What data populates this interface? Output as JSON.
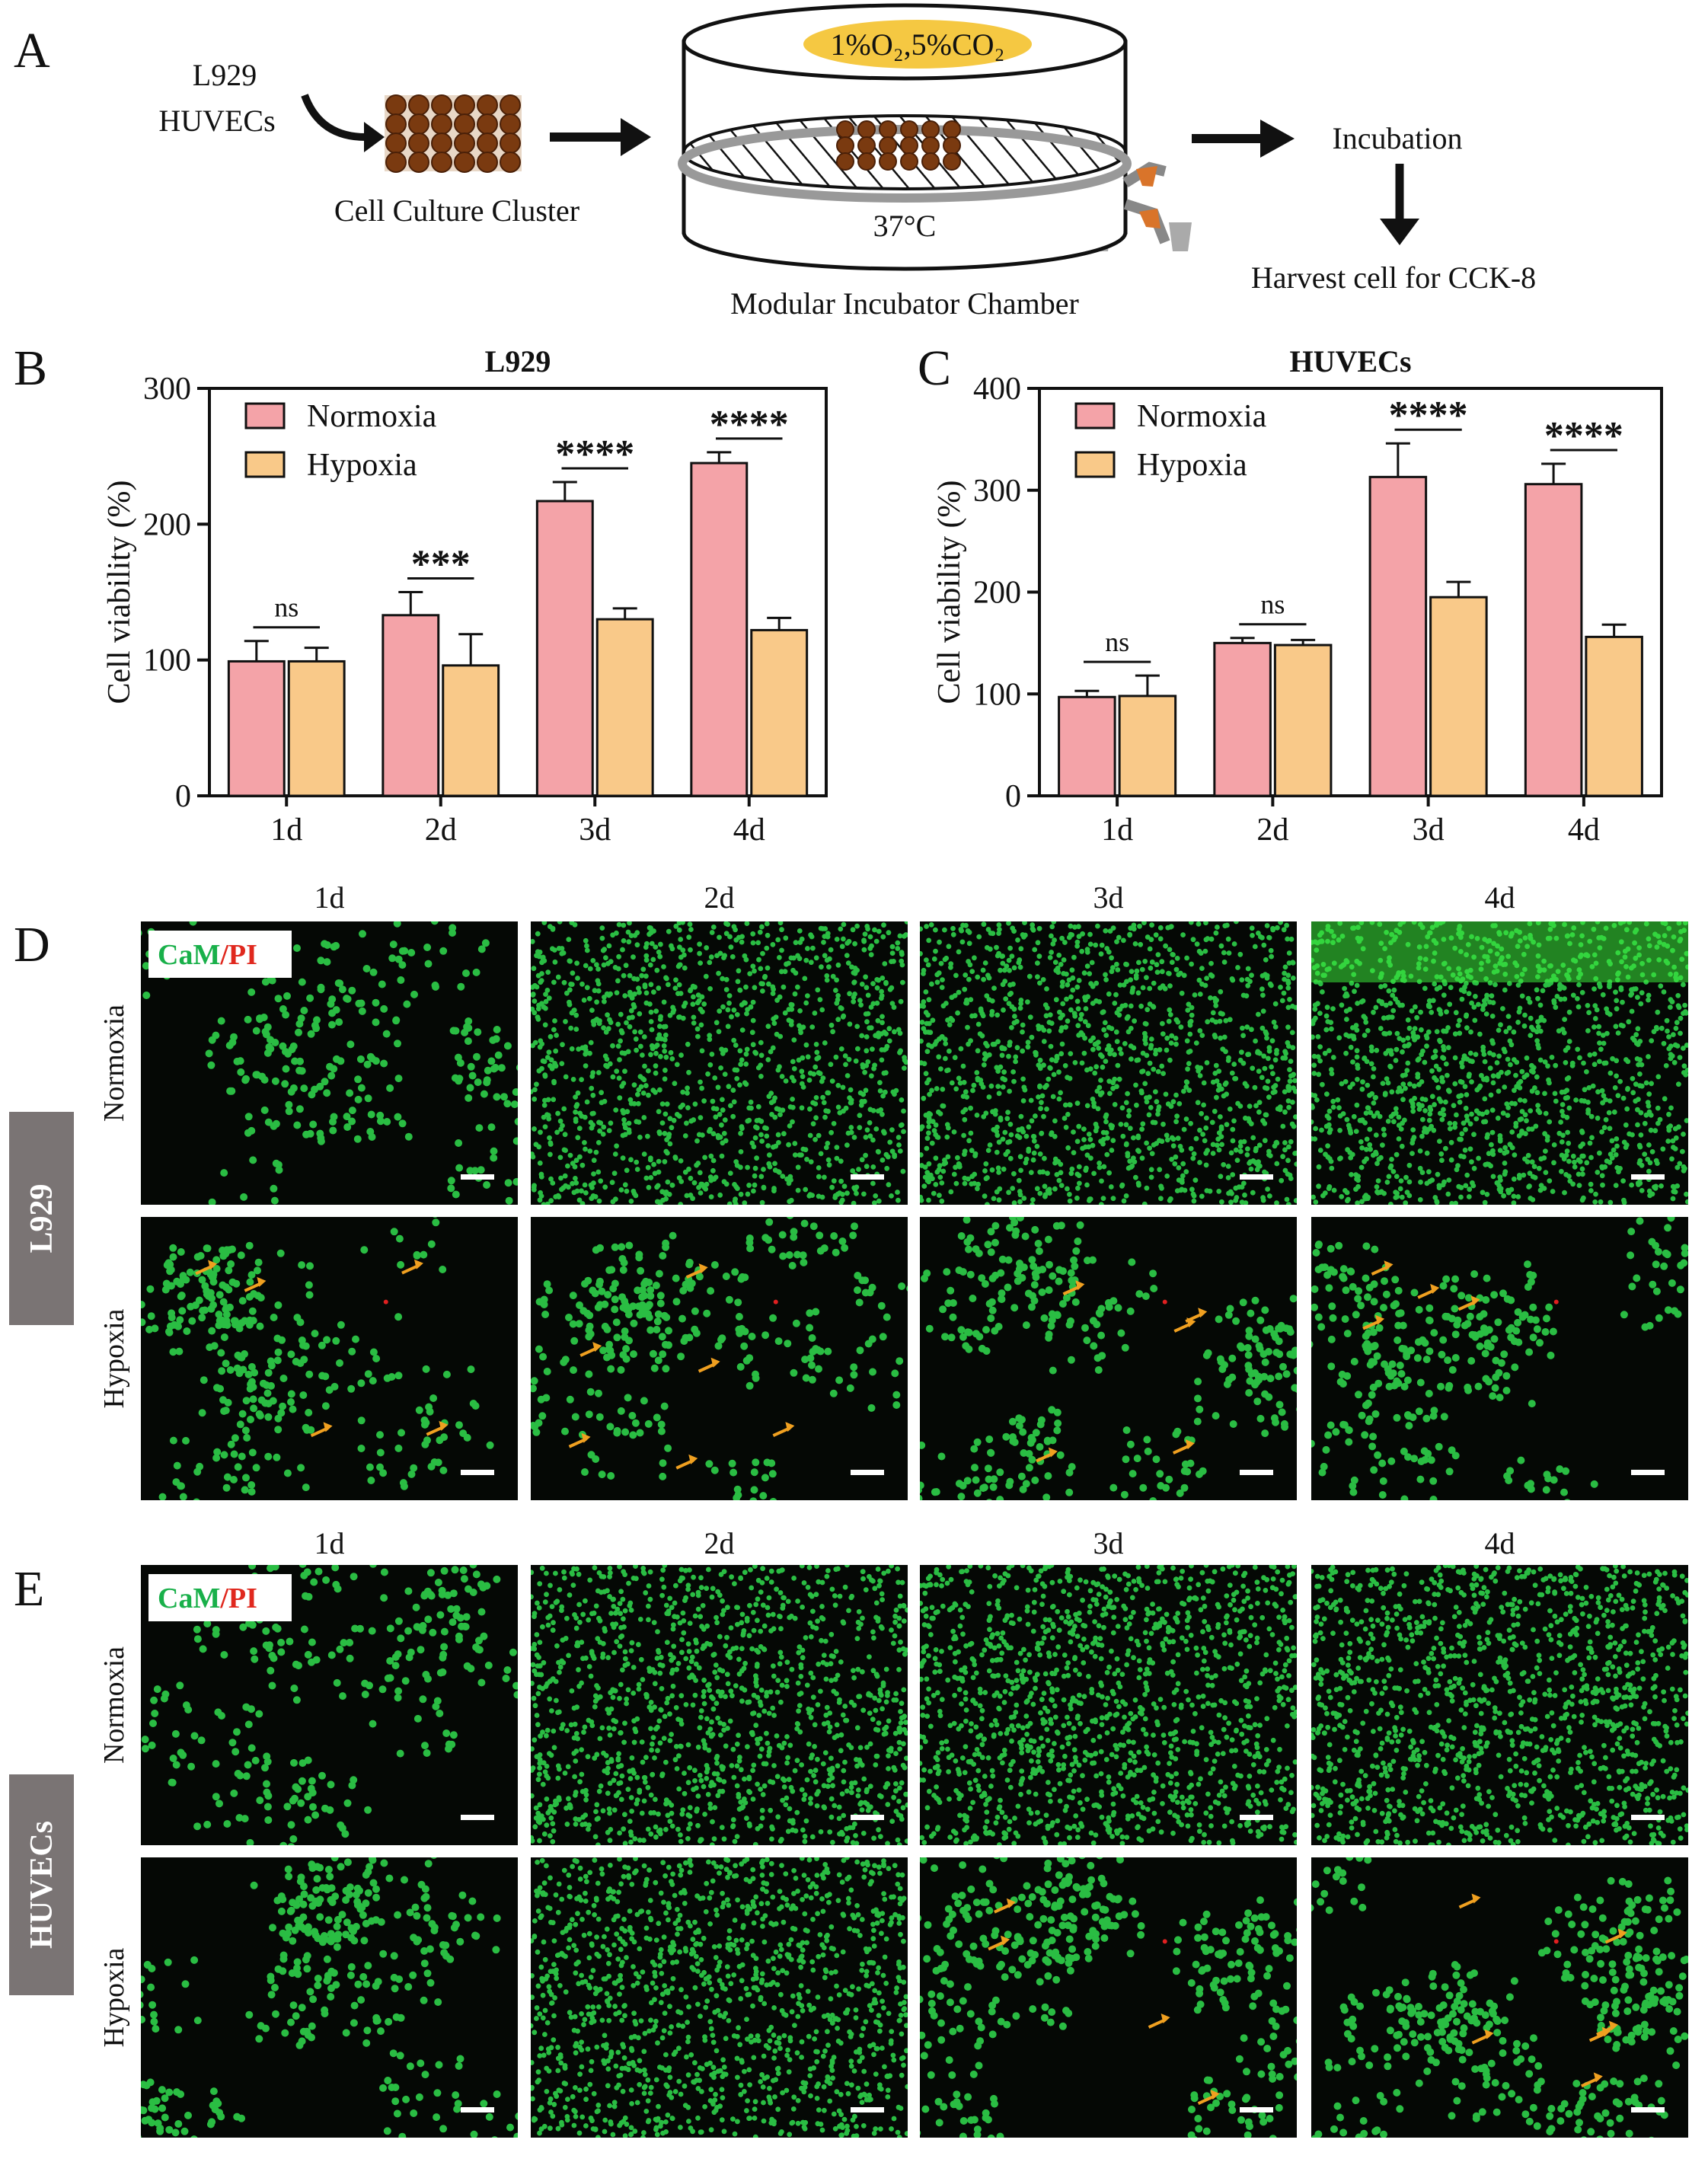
{
  "panels": {
    "A": {
      "letter": "A",
      "cell_lines": [
        "L929",
        "HUVECs"
      ],
      "cluster_label": "Cell Culture Cluster",
      "gas_label": "1%O₂,5%CO₂",
      "temp_label": "37°C",
      "chamber_label": "Modular Incubator Chamber",
      "incubation_label": "Incubation",
      "harvest_label": "Harvest cell for CCK-8"
    },
    "B": {
      "letter": "B"
    },
    "C": {
      "letter": "C"
    },
    "D": {
      "letter": "D",
      "side_label": "L929",
      "stain_cam": "CaM",
      "stain_slash": "/",
      "stain_pi": "PI",
      "col_labels": [
        "1d",
        "2d",
        "3d",
        "4d"
      ],
      "row_labels": [
        "Normoxia",
        "Hypoxia"
      ]
    },
    "E": {
      "letter": "E",
      "side_label": "HUVECs",
      "stain_cam": "CaM",
      "stain_slash": "/",
      "stain_pi": "PI",
      "col_labels": [
        "1d",
        "2d",
        "3d",
        "4d"
      ],
      "row_labels": [
        "Normoxia",
        "Hypoxia"
      ]
    }
  },
  "colors": {
    "normoxia": "#f4a3a8",
    "hypoxia": "#f9c989",
    "cell_green": "#2fd24a",
    "dead_red": "#e02020",
    "arrow_orange": "#f0a020",
    "side_label_bg": "#7a7474",
    "cam_text": "#19b04a",
    "pi_text": "#e0281e"
  },
  "chart_data": [
    {
      "type": "bar",
      "title": "L929",
      "ylabel": "Cell viability (%)",
      "xlabel": "",
      "categories": [
        "1d",
        "2d",
        "3d",
        "4d"
      ],
      "ylim": [
        0,
        300
      ],
      "yticks": [
        0,
        100,
        200,
        300
      ],
      "legend": "top-left",
      "series": [
        {
          "name": "Normoxia",
          "values": [
            99,
            133,
            217,
            245
          ],
          "errors": [
            15,
            17,
            14,
            8
          ]
        },
        {
          "name": "Hypoxia",
          "values": [
            99,
            96,
            130,
            122
          ],
          "errors": [
            10,
            23,
            8,
            9
          ]
        }
      ],
      "significance": [
        "ns",
        "***",
        "****",
        "****"
      ]
    },
    {
      "type": "bar",
      "title": "HUVECs",
      "ylabel": "Cell viability (%)",
      "xlabel": "",
      "categories": [
        "1d",
        "2d",
        "3d",
        "4d"
      ],
      "ylim": [
        0,
        400
      ],
      "yticks": [
        0,
        100,
        200,
        300,
        400
      ],
      "legend": "top-left",
      "series": [
        {
          "name": "Normoxia",
          "values": [
            97,
            150,
            313,
            306
          ],
          "errors": [
            6,
            5,
            33,
            20
          ]
        },
        {
          "name": "Hypoxia",
          "values": [
            98,
            148,
            195,
            156
          ],
          "errors": [
            20,
            5,
            15,
            12
          ]
        }
      ],
      "significance": [
        "ns",
        "ns",
        "****",
        "****"
      ]
    }
  ]
}
